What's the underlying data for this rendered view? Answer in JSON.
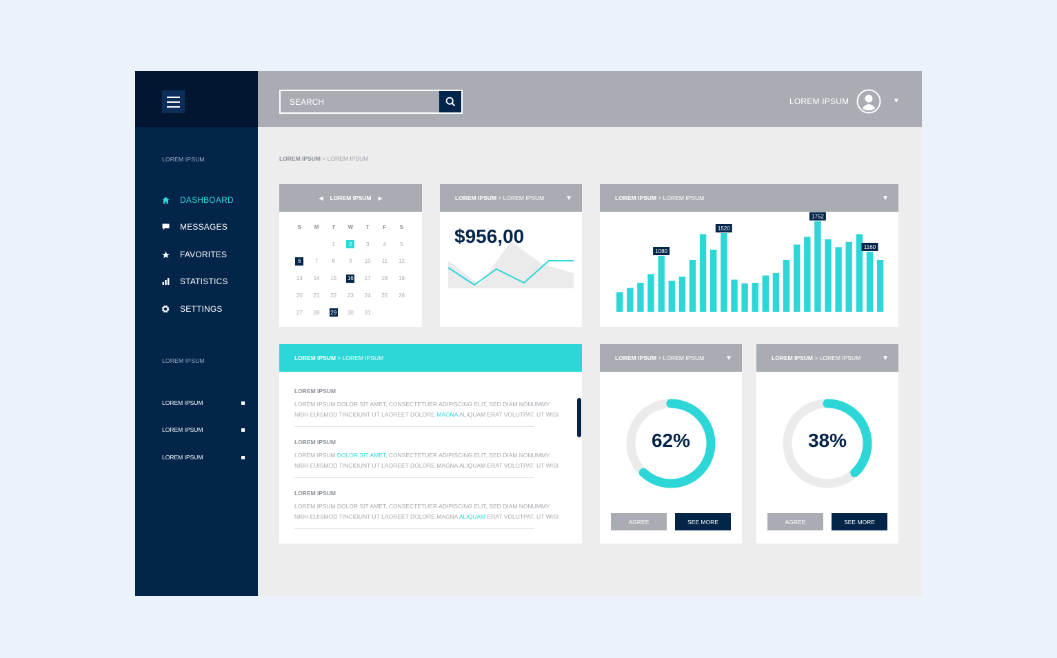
{
  "sidebar": {
    "section1_heading": "LOREM IPSUM",
    "nav": [
      {
        "label": "DASHBOARD",
        "icon": "home-icon",
        "active": true
      },
      {
        "label": "MESSAGES",
        "icon": "chat-icon",
        "active": false
      },
      {
        "label": "FAVORITES",
        "icon": "star-icon",
        "active": false
      },
      {
        "label": "STATISTICS",
        "icon": "bar-chart-icon",
        "active": false
      },
      {
        "label": "SETTINGS",
        "icon": "gear-icon",
        "active": false
      }
    ],
    "section2_heading": "LOREM IPSUM",
    "sub_items": [
      {
        "label": "LOREM IPSUM"
      },
      {
        "label": "LOREM IPSUM"
      },
      {
        "label": "LOREM IPSUM"
      }
    ]
  },
  "header": {
    "search_placeholder": "SEARCH",
    "username": "LOREM IPSUM"
  },
  "breadcrumb": {
    "first": "LOREM IPSUM",
    "separator": " > ",
    "second": "LOREM IPSUM"
  },
  "calendar": {
    "month": "LOREM IPSUM",
    "weekdays": [
      "S",
      "M",
      "T",
      "W",
      "T",
      "F",
      "S"
    ],
    "start_offset": 2,
    "days_in_month": 31,
    "highlight_cyan": [
      2
    ],
    "highlight_navy": [
      6,
      16,
      29
    ]
  },
  "value_card": {
    "title_bold": "LOREM IPSUM",
    "title_rest": " > LOREM IPSUM",
    "value": "$956,00"
  },
  "bar_card": {
    "title_bold": "LOREM IPSUM",
    "title_rest": " > LOREM IPSUM"
  },
  "list_card": {
    "title_bold": "LOREM IPSUM",
    "title_rest": " > LOREM IPSUM",
    "entries": [
      {
        "title": "LOREM IPSUM",
        "line1": [
          {
            "t": "LOREM IPSUM DOLOR SIT AMET, CONSECTETUER ADIPISCING ELIT, SED DIAM NONUMMY"
          }
        ],
        "line2": [
          {
            "t": "NIBH EUISMOD TINCIDUNT UT LAOREET DOLORE "
          },
          {
            "t": "MAGNA",
            "hl": true
          },
          {
            "t": " ALIQUAM ERAT VOLUTPAT. UT WISI"
          }
        ]
      },
      {
        "title": "LOREM IPSUM",
        "line1": [
          {
            "t": "LOREM IPSUM "
          },
          {
            "t": "DOLOR SIT AMET",
            "hl": true
          },
          {
            "t": ", CONSECTETUER ADIPISCING ELIT, SED DIAM NONUMMY"
          }
        ],
        "line2": [
          {
            "t": "NIBH EUISMOD TINCIDUNT UT LAOREET DOLORE MAGNA ALIQUAM ERAT VOLUTPAT. UT WISI"
          }
        ]
      },
      {
        "title": "LOREM IPSUM",
        "line1": [
          {
            "t": "LOREM IPSUM DOLOR SIT AMET, CONSECTETUER ADIPISCING ELIT, SED DIAM NONUMMY"
          }
        ],
        "line2": [
          {
            "t": "NIBH EUISMOD TINCIDUNT UT LAOREET DOLORE MAGNA "
          },
          {
            "t": "ALIQUAM",
            "hl": true
          },
          {
            "t": " ERAT VOLUTPAT. UT WISI"
          }
        ]
      }
    ]
  },
  "donut_cards": [
    {
      "title_bold": "LOREM IPSUM",
      "title_rest": " > LOREM IPSUM",
      "value": "62%",
      "percent": 62,
      "agree_label": "AGREE",
      "more_label": "SEE MORE"
    },
    {
      "title_bold": "LOREM IPSUM",
      "title_rest": " > LOREM IPSUM",
      "value": "38%",
      "percent": 38,
      "agree_label": "AGREE",
      "more_label": "SEE MORE"
    }
  ],
  "colors": {
    "accent": "#2dd7d8",
    "navy": "#04254a",
    "sidebar_top": "#021631",
    "header_gray": "#a9adb3",
    "track_gray": "#ebebeb"
  },
  "chart_data": [
    {
      "type": "area",
      "series": [
        {
          "values": [
            40,
            5,
            68,
            35,
            22
          ]
        },
        {
          "values": [
            30,
            5,
            28,
            8,
            40,
            40
          ]
        }
      ]
    },
    {
      "type": "bar",
      "values": [
        380,
        460,
        560,
        730,
        1080,
        600,
        680,
        1000,
        1500,
        1200,
        1520,
        620,
        550,
        560,
        700,
        750,
        1000,
        1300,
        1450,
        1752,
        1400,
        1250,
        1350,
        1500,
        1160,
        1000
      ],
      "data_labels": [
        {
          "index": 4,
          "text": "1080"
        },
        {
          "index": 10,
          "text": "1520"
        },
        {
          "index": 19,
          "text": "1752"
        },
        {
          "index": 24,
          "text": "1160"
        }
      ],
      "ylim": [
        0,
        1800
      ]
    }
  ]
}
